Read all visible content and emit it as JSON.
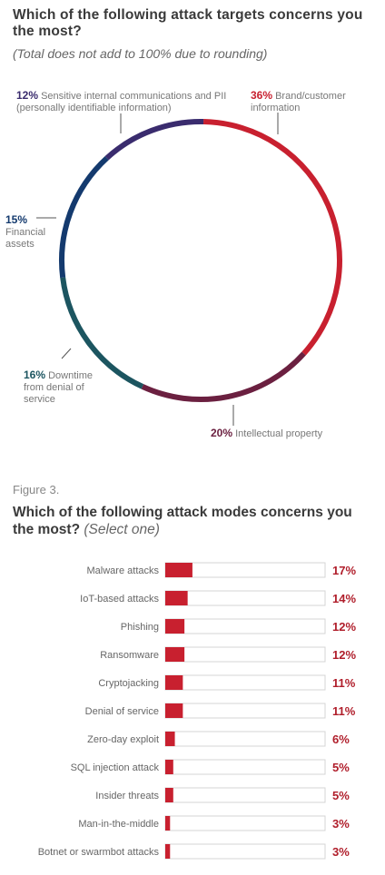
{
  "chart1": {
    "title": "Which of the following attack targets concerns you the most?",
    "subtitle": "(Total does not add to 100% due to rounding)"
  },
  "chart2": {
    "figure_label": "Figure 3.",
    "title": "Which of the following attack modes concerns you the most?",
    "subtitle": "(Select one)"
  },
  "chart_data": [
    {
      "type": "pie",
      "variant": "donut",
      "title": "Which of the following attack targets concerns you the most?",
      "subtitle": "(Total does not add to 100% due to rounding)",
      "slices": [
        {
          "pct": "36%",
          "value": 36,
          "label": "Brand/customer information",
          "color": "#c8202f"
        },
        {
          "pct": "20%",
          "value": 20,
          "label": "Intellectual property",
          "color": "#6b2040"
        },
        {
          "pct": "16%",
          "value": 16,
          "label": "Downtime from denial of service",
          "color": "#1c5560"
        },
        {
          "pct": "15%",
          "value": 15,
          "label": "Financial assets",
          "color": "#143a6e"
        },
        {
          "pct": "12%",
          "value": 12,
          "label": "Sensitive internal communications and PII (personally identifiable information)",
          "color": "#3a2c6e"
        }
      ]
    },
    {
      "type": "bar",
      "orientation": "horizontal",
      "title": "Which of the following attack modes concerns you the most?",
      "subtitle": "(Select one)",
      "categories": [
        "Malware attacks",
        "IoT-based attacks",
        "Phishing",
        "Ransomware",
        "Cryptojacking",
        "Denial of service",
        "Zero-day exploit",
        "SQL injection attack",
        "Insider threats",
        "Man-in-the-middle",
        "Botnet or swarmbot attacks"
      ],
      "values": [
        17,
        14,
        12,
        12,
        11,
        11,
        6,
        5,
        5,
        3,
        3
      ],
      "value_labels": [
        "17%",
        "14%",
        "12%",
        "12%",
        "11%",
        "11%",
        "6%",
        "5%",
        "5%",
        "3%",
        "3%"
      ],
      "xlim": [
        0,
        100
      ],
      "bar_color": "#c8202f",
      "track_color": "#ffffff",
      "track_border": "#d4d4d4",
      "value_label_color": "#b01e2b"
    }
  ]
}
